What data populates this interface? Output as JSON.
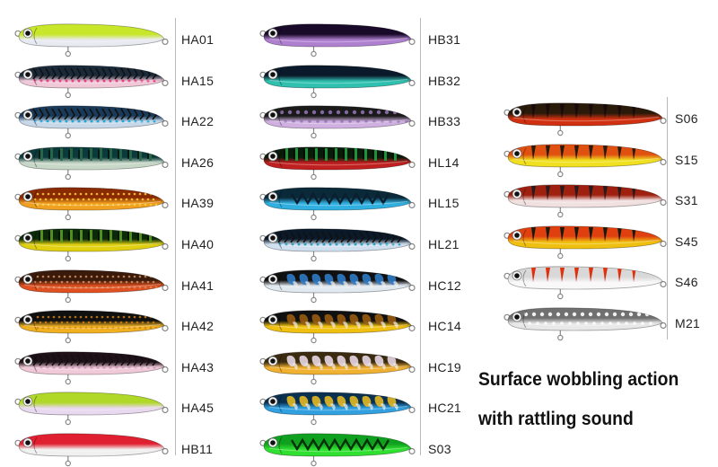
{
  "columns": [
    {
      "items": [
        {
          "code": "HA01",
          "back": "#c8e62a",
          "belly": "#e8eaf2",
          "pattern": "none",
          "mark": "#7a5fb0"
        },
        {
          "code": "HA15",
          "back": "#1a2a3a",
          "belly": "#f0c8d8",
          "pattern": "mack",
          "mark": "#e8407a"
        },
        {
          "code": "HA22",
          "back": "#1a3a5a",
          "belly": "#c8d8e8",
          "pattern": "mack",
          "mark": "#20a8d8"
        },
        {
          "code": "HA26",
          "back": "#0a3a3a",
          "belly": "#c8d8c8",
          "pattern": "stripes",
          "mark": "#2a6a4a"
        },
        {
          "code": "HA39",
          "back": "#8a2a00",
          "belly": "#f0a020",
          "pattern": "dots",
          "mark": "#ffd040"
        },
        {
          "code": "HA40",
          "back": "#0a2a0a",
          "belly": "#e0d010",
          "pattern": "stripes",
          "mark": "#5a9a20"
        },
        {
          "code": "HA41",
          "back": "#3a1a0a",
          "belly": "#e05020",
          "pattern": "dots",
          "mark": "#d09060"
        },
        {
          "code": "HA42",
          "back": "#101010",
          "belly": "#f0b020",
          "pattern": "dots",
          "mark": "#d08010"
        },
        {
          "code": "HA43",
          "back": "#201018",
          "belly": "#f0c8d8",
          "pattern": "mack",
          "mark": "#c89ab8"
        },
        {
          "code": "HA45",
          "back": "#b0d828",
          "belly": "#e8d8f0",
          "pattern": "none",
          "mark": "#d090c0"
        },
        {
          "code": "HB11",
          "back": "#e02030",
          "belly": "#f0f0f0",
          "pattern": "none",
          "mark": "#f09090"
        }
      ]
    },
    {
      "items": [
        {
          "code": "HB31",
          "back": "#1a0a2a",
          "belly": "#b080d0",
          "pattern": "none",
          "mark": "#8050b0"
        },
        {
          "code": "HB32",
          "back": "#0a1a2a",
          "belly": "#30c0b0",
          "pattern": "none",
          "mark": "#20a0a0"
        },
        {
          "code": "HB33",
          "back": "#1a1a1a",
          "belly": "#d0b0e0",
          "pattern": "spots",
          "mark": "#9070b0"
        },
        {
          "code": "HL14",
          "back": "#0a1a0a",
          "belly": "#c02020",
          "pattern": "stripes",
          "mark": "#20a040"
        },
        {
          "code": "HL15",
          "back": "#0a2a3a",
          "belly": "#30b0e0",
          "pattern": "vwave",
          "mark": "#0a2030"
        },
        {
          "code": "HL21",
          "back": "#0a1a2a",
          "belly": "#d0e0f0",
          "pattern": "mack",
          "mark": "#30a0c0"
        },
        {
          "code": "HC12",
          "back": "#101010",
          "belly": "#e0e8f0",
          "pattern": "camo",
          "mark": "#3080d0"
        },
        {
          "code": "HC14",
          "back": "#101010",
          "belly": "#f0c010",
          "pattern": "camo",
          "mark": "#a06010"
        },
        {
          "code": "HC19",
          "back": "#3a2a10",
          "belly": "#f0b030",
          "pattern": "camo",
          "mark": "#f0e0f0"
        },
        {
          "code": "HC21",
          "back": "#0a3050",
          "belly": "#30a0e0",
          "pattern": "camo",
          "mark": "#f0c020"
        },
        {
          "code": "S03",
          "back": "#10a020",
          "belly": "#30e030",
          "pattern": "vwave",
          "mark": "#0a300a"
        }
      ]
    },
    {
      "items": [
        {
          "code": "S06",
          "back": "#2a1a0a",
          "belly": "#d03010",
          "pattern": "tiger",
          "mark": "#1a0a0a"
        },
        {
          "code": "S15",
          "back": "#e05010",
          "belly": "#f0e020",
          "pattern": "tiger",
          "mark": "#2a1a0a"
        },
        {
          "code": "S31",
          "back": "#a02010",
          "belly": "#f0e0e0",
          "pattern": "tiger",
          "mark": "#2a1a1a"
        },
        {
          "code": "S45",
          "back": "#e04010",
          "belly": "#f0c010",
          "pattern": "tiger",
          "mark": "#1a1a0a"
        },
        {
          "code": "S46",
          "back": "#d8d8d8",
          "belly": "#f8f8f8",
          "pattern": "tiger",
          "mark": "#e03010"
        },
        {
          "code": "M21",
          "back": "#707070",
          "belly": "#e8e8e8",
          "pattern": "spots",
          "mark": "#ffffff"
        }
      ]
    }
  ],
  "caption": {
    "line1": "Surface wobbling action",
    "line2": "with rattling sound"
  }
}
